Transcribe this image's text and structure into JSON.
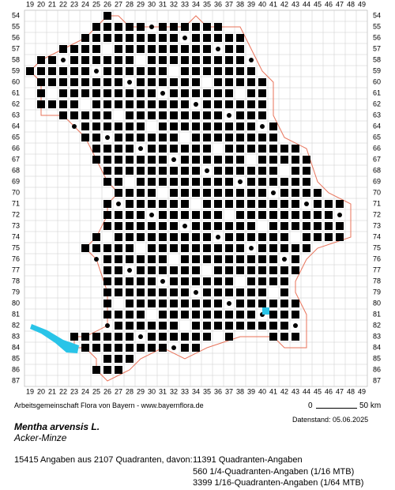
{
  "map": {
    "columns": [
      19,
      20,
      21,
      22,
      23,
      24,
      25,
      26,
      27,
      28,
      29,
      30,
      31,
      32,
      33,
      34,
      35,
      36,
      37,
      38,
      39,
      40,
      41,
      42,
      43,
      44,
      45,
      46,
      47,
      48,
      49
    ],
    "rows": [
      54,
      55,
      56,
      57,
      58,
      59,
      60,
      61,
      62,
      63,
      64,
      65,
      66,
      67,
      68,
      69,
      70,
      71,
      72,
      73,
      74,
      75,
      76,
      77,
      78,
      79,
      80,
      81,
      82,
      83,
      84,
      85,
      86,
      87
    ]
  },
  "scale": {
    "start": "0",
    "end": "50 km"
  },
  "footer": {
    "credit": "Arbeitsgemeinschaft Flora von Bayern - www.bayernflora.de",
    "date": "Datenstand: 05.06.2025",
    "species": "Mentha arvensis L.",
    "common_name": "Acker-Minze",
    "summary": "15415 Angaben aus 2107 Quadranten, davon:",
    "details": [
      "11391 Quadranten-Angaben",
      "560 1/4-Quadranten-Angaben (1/16 MTB)",
      "3399 1/16-Quadranten-Angaben (1/64 MTB)"
    ]
  }
}
